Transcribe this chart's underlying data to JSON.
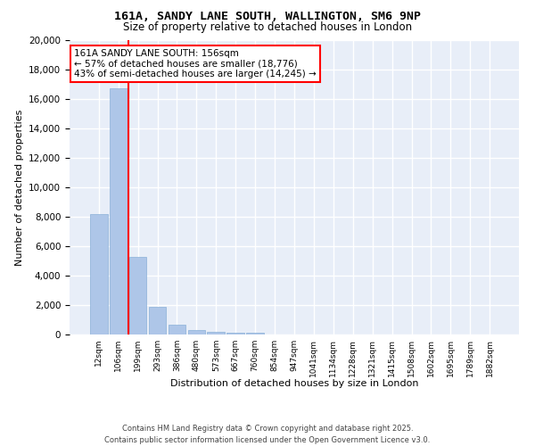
{
  "title_line1": "161A, SANDY LANE SOUTH, WALLINGTON, SM6 9NP",
  "title_line2": "Size of property relative to detached houses in London",
  "xlabel": "Distribution of detached houses by size in London",
  "ylabel": "Number of detached properties",
  "categories": [
    "12sqm",
    "106sqm",
    "199sqm",
    "293sqm",
    "386sqm",
    "480sqm",
    "573sqm",
    "667sqm",
    "760sqm",
    "854sqm",
    "947sqm",
    "1041sqm",
    "1134sqm",
    "1228sqm",
    "1321sqm",
    "1415sqm",
    "1508sqm",
    "1602sqm",
    "1695sqm",
    "1789sqm",
    "1882sqm"
  ],
  "values": [
    8200,
    16700,
    5300,
    1850,
    650,
    330,
    200,
    130,
    100,
    0,
    0,
    0,
    0,
    0,
    0,
    0,
    0,
    0,
    0,
    0,
    0
  ],
  "bar_color": "#aec6e8",
  "bar_edge_color": "#8ab0d8",
  "vline_x": 1.5,
  "vline_color": "red",
  "annotation_text": "161A SANDY LANE SOUTH: 156sqm\n← 57% of detached houses are smaller (18,776)\n43% of semi-detached houses are larger (14,245) →",
  "annotation_box_color": "white",
  "annotation_box_edge_color": "red",
  "ylim": [
    0,
    20000
  ],
  "yticks": [
    0,
    2000,
    4000,
    6000,
    8000,
    10000,
    12000,
    14000,
    16000,
    18000,
    20000
  ],
  "background_color": "#e8eef8",
  "grid_color": "white",
  "footer_line1": "Contains HM Land Registry data © Crown copyright and database right 2025.",
  "footer_line2": "Contains public sector information licensed under the Open Government Licence v3.0."
}
